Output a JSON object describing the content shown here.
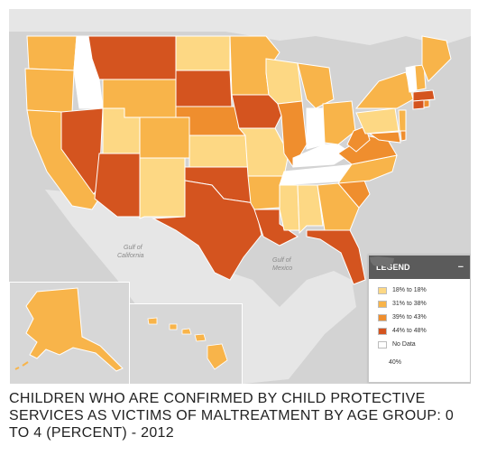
{
  "caption": "CHILDREN WHO ARE CONFIRMED BY CHILD PROTECTIVE SERVICES AS VICTIMS OF MALTREATMENT BY AGE GROUP: 0 TO 4 (PERCENT) - 2012",
  "map_labels": {
    "gulf_california_1": "Gulf of",
    "gulf_california_2": "California",
    "gulf_mexico_1": "Gulf of",
    "gulf_mexico_2": "Mexico"
  },
  "legend": {
    "title": "LEGEND",
    "minimize_symbol": "−",
    "items": [
      {
        "label": "18% to 18%",
        "color": "#fdd884"
      },
      {
        "label": "31% to 38%",
        "color": "#f8b44a"
      },
      {
        "label": "39% to 43%",
        "color": "#ef8e2e"
      },
      {
        "label": "44% to 48%",
        "color": "#d4541f"
      },
      {
        "label": "No Data",
        "color": "#ffffff"
      }
    ],
    "us_average": "40%",
    "us_icon": "us-map-icon"
  },
  "colors": {
    "water": "#d3d3d3",
    "land_other": "#e6e6e6",
    "state_border": "#ffffff"
  }
}
